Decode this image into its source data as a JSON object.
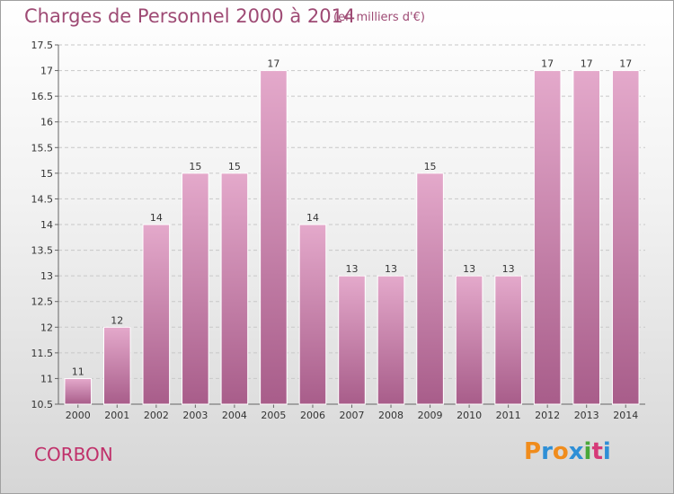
{
  "header": {
    "title": "Charges de Personnel 2000 à 2014",
    "unit": "(en milliers d'€)"
  },
  "footer": {
    "commune": "CORBON",
    "logo": [
      "P",
      "r",
      "o",
      "x",
      "i",
      "t",
      "i"
    ]
  },
  "colors": {
    "bar_top": "#e4a9cb",
    "bar_bottom": "#a85d8a",
    "title": "#9e4a74",
    "commune": "#c0306a",
    "logo": [
      "#f08c1c",
      "#2e8fd6",
      "#f08c1c",
      "#2e8fd6",
      "#4aa83a",
      "#d63a78",
      "#2e8fd6"
    ]
  },
  "chart_data": {
    "type": "bar",
    "title": "Charges de Personnel 2000 à 2014",
    "subtitle": "(en milliers d'€)",
    "categories": [
      "2000",
      "2001",
      "2002",
      "2003",
      "2004",
      "2005",
      "2006",
      "2007",
      "2008",
      "2009",
      "2010",
      "2011",
      "2012",
      "2013",
      "2014"
    ],
    "values": [
      11,
      12,
      14,
      15,
      15,
      17,
      14,
      13,
      13,
      15,
      13,
      13,
      17,
      17,
      17
    ],
    "data_labels": [
      "11",
      "12",
      "14",
      "15",
      "15",
      "17",
      "14",
      "13",
      "13",
      "15",
      "13",
      "13",
      "17",
      "17",
      "17"
    ],
    "ylim": [
      10.5,
      17.5
    ],
    "yticks": [
      10.5,
      11,
      11.5,
      12,
      12.5,
      13,
      13.5,
      14,
      14.5,
      15,
      15.5,
      16,
      16.5,
      17,
      17.5
    ],
    "ytick_labels": [
      "10.5",
      "11",
      "11.5",
      "12",
      "12.5",
      "13",
      "13.5",
      "14",
      "14.5",
      "15",
      "15.5",
      "16",
      "16.5",
      "17",
      "17.5"
    ],
    "grid": true,
    "xlabel": "",
    "ylabel": ""
  }
}
